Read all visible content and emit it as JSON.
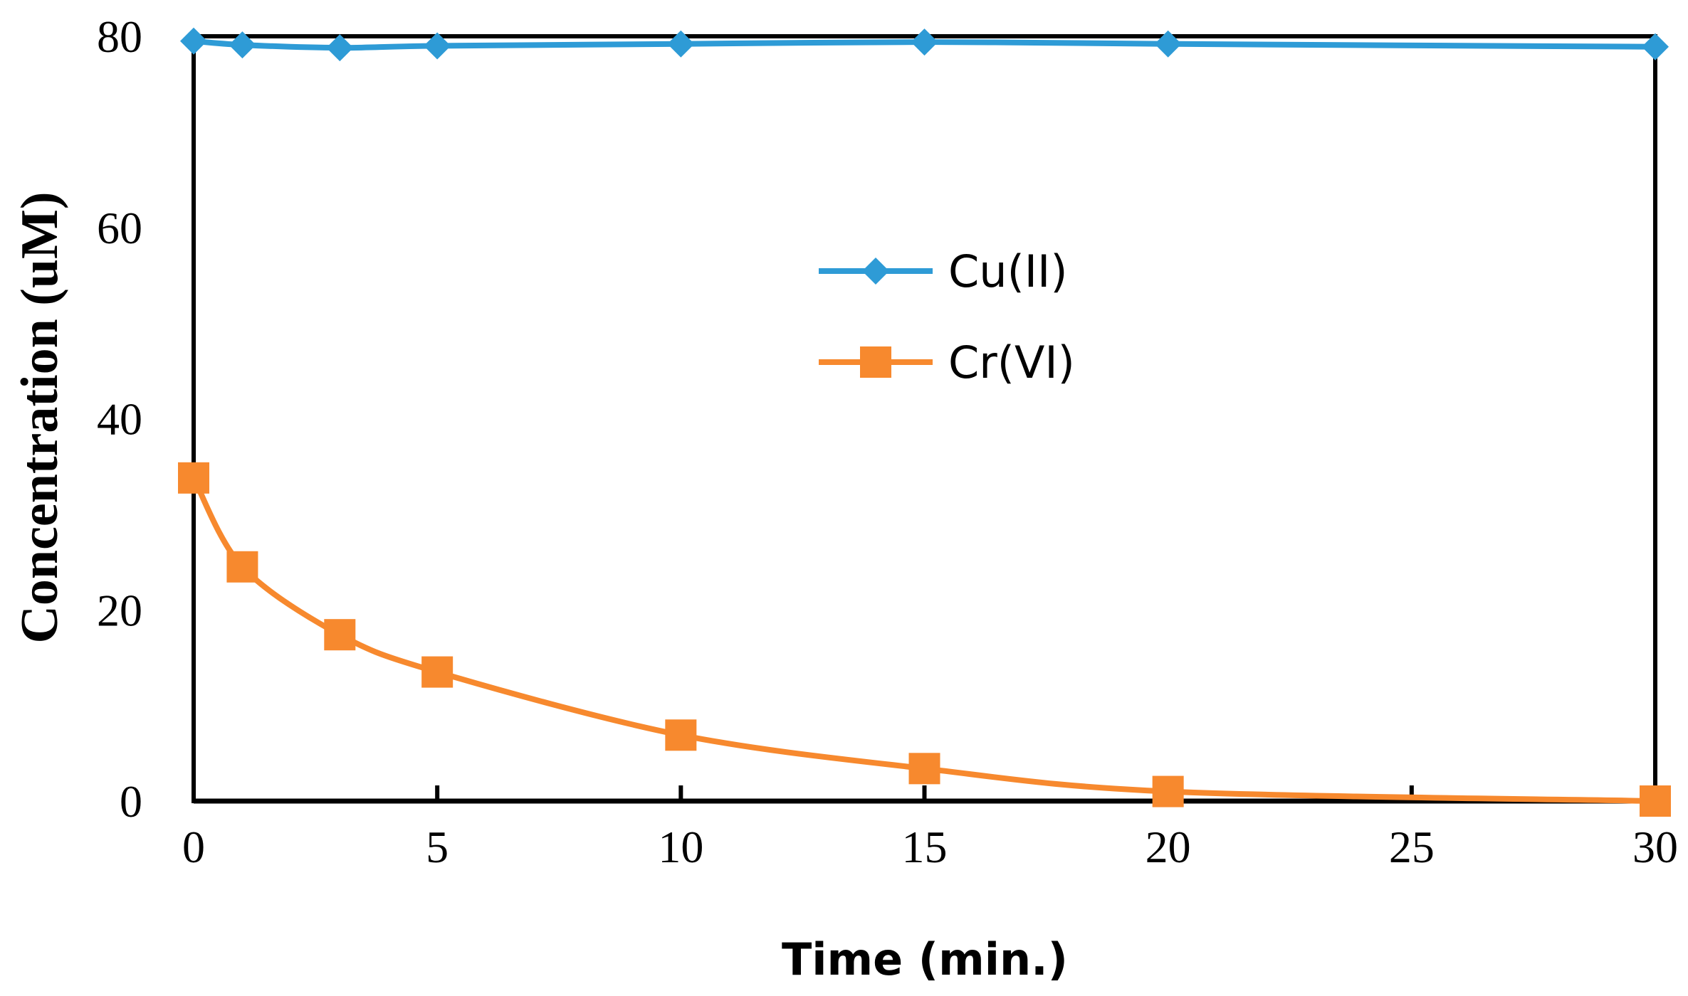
{
  "chart_data": {
    "type": "line",
    "title": "",
    "xlabel": "Time (min.)",
    "ylabel": "Concentration (uM)",
    "xlim": [
      0,
      30
    ],
    "ylim": [
      0,
      80
    ],
    "xticks": [
      0,
      5,
      10,
      15,
      20,
      25,
      30
    ],
    "yticks": [
      0,
      20,
      40,
      60,
      80
    ],
    "grid": false,
    "legend_position": "center",
    "series": [
      {
        "name": "Cu(II)",
        "color": "#2e9bd6",
        "marker": "diamond",
        "x": [
          0,
          1,
          3,
          5,
          10,
          15,
          20,
          30
        ],
        "y": [
          79.5,
          79.1,
          78.8,
          79.0,
          79.2,
          79.4,
          79.2,
          78.9
        ]
      },
      {
        "name": "Cr(VI)",
        "color": "#f7892e",
        "marker": "square",
        "x": [
          0,
          1,
          3,
          5,
          10,
          15,
          20,
          30
        ],
        "y": [
          33.8,
          24.5,
          17.4,
          13.5,
          6.9,
          3.4,
          1.0,
          0.0
        ]
      }
    ]
  }
}
